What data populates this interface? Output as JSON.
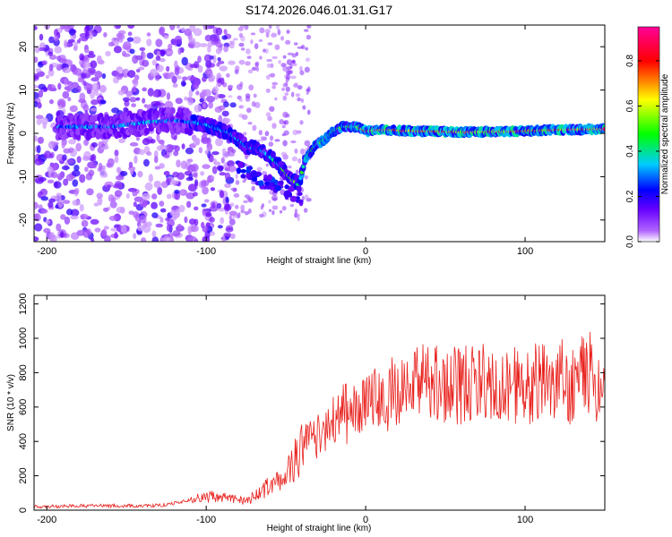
{
  "title": "S174.2026.046.01.31.G17",
  "chart_data": [
    {
      "type": "heatmap",
      "title": "S174.2026.046.01.31.G17",
      "xlabel": "Height of straight line (km)",
      "ylabel": "Frequency (Hz)",
      "xlim": [
        -208,
        150
      ],
      "ylim": [
        -25,
        25
      ],
      "xticks": [
        -200,
        -100,
        0,
        100
      ],
      "yticks": [
        -20,
        -10,
        0,
        10,
        20
      ],
      "colorbar": {
        "label": "Normalized spectral amplitude",
        "range": [
          0,
          0.95
        ],
        "ticks": [
          "0.0",
          "0.2",
          "0.4",
          "0.6",
          "0.8"
        ],
        "tick_values": [
          0,
          0.2,
          0.4,
          0.6,
          0.8
        ],
        "colors": [
          "#ffffff",
          "#6600ff",
          "#0000ff",
          "#00ccff",
          "#00ff00",
          "#ffff00",
          "#ff0000",
          "#ff0099"
        ]
      },
      "ridge": {
        "x": [
          -185,
          -160,
          -140,
          -120,
          -100,
          -85,
          -75,
          -65,
          -55,
          -48,
          -42,
          -38,
          -32,
          -26,
          -20,
          -15,
          -10,
          -5,
          0,
          10,
          30,
          60,
          90,
          120,
          150
        ],
        "y": [
          1.5,
          1.5,
          2.5,
          3.0,
          2.0,
          0.0,
          -3.0,
          -4.0,
          -7.0,
          -10.0,
          -12.0,
          -6.0,
          -3.0,
          -1.5,
          0.5,
          1.5,
          1.5,
          1.5,
          0.5,
          0.8,
          0.5,
          0.3,
          0.4,
          0.8,
          1.0
        ]
      }
    },
    {
      "type": "line",
      "xlabel": "Height of straight line (km)",
      "ylabel": "SNR (10 * v/v)",
      "xlim": [
        -208,
        150
      ],
      "ylim": [
        0,
        1250
      ],
      "xticks": [
        -200,
        -100,
        0,
        100
      ],
      "yticks": [
        0,
        200,
        400,
        600,
        800,
        1000,
        1200
      ],
      "color": "#e8201c",
      "series": [
        {
          "name": "SNR",
          "x": [
            -208,
            -180,
            -160,
            -140,
            -125,
            -110,
            -95,
            -85,
            -75,
            -65,
            -55,
            -48,
            -42,
            -37,
            -33,
            -28,
            -22,
            -15,
            -8,
            0,
            10,
            20,
            30,
            40,
            50,
            60,
            70,
            80,
            90,
            100,
            110,
            120,
            130,
            140,
            150
          ],
          "y": [
            20,
            25,
            25,
            25,
            30,
            60,
            80,
            75,
            50,
            110,
            170,
            250,
            330,
            400,
            430,
            460,
            520,
            560,
            560,
            600,
            650,
            700,
            720,
            760,
            740,
            720,
            760,
            720,
            740,
            720,
            760,
            780,
            720,
            800,
            700
          ]
        }
      ]
    }
  ]
}
